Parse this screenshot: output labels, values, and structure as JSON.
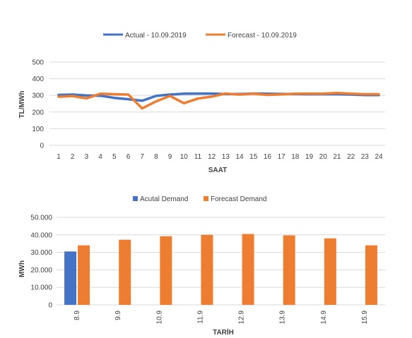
{
  "colors": {
    "actual": "#4472c4",
    "forecast": "#ed7d31",
    "grid": "#d9d9d9",
    "text": "#404040"
  },
  "chart_data": [
    {
      "type": "line",
      "title": "",
      "xlabel": "SAAT",
      "ylabel": "TL/MWh",
      "ylim": [
        0,
        500
      ],
      "yticks": [
        "0",
        "100",
        "200",
        "300",
        "400",
        "500"
      ],
      "grid": true,
      "legend_position": "top",
      "x": [
        "1",
        "2",
        "3",
        "4",
        "5",
        "6",
        "7",
        "8",
        "9",
        "10",
        "11",
        "12",
        "13",
        "14",
        "15",
        "16",
        "17",
        "18",
        "19",
        "20",
        "21",
        "22",
        "23",
        "24"
      ],
      "series": [
        {
          "name": "Actual - 10.09.2019",
          "color": "#4472c4",
          "values": [
            303,
            305,
            300,
            298,
            285,
            277,
            268,
            297,
            305,
            310,
            311,
            311,
            308,
            308,
            311,
            310,
            309,
            308,
            307,
            307,
            307,
            305,
            302,
            302
          ]
        },
        {
          "name": "Forecast - 10.09.2019",
          "color": "#ed7d31",
          "values": [
            292,
            296,
            282,
            310,
            307,
            305,
            222,
            264,
            297,
            253,
            281,
            293,
            311,
            305,
            310,
            303,
            306,
            310,
            310,
            310,
            315,
            310,
            307,
            307
          ]
        }
      ]
    },
    {
      "type": "bar",
      "title": "",
      "xlabel": "TARİH",
      "ylabel": "MWh",
      "ylim": [
        0,
        50000
      ],
      "yticks": [
        "0",
        "10.000",
        "20.000",
        "30.000",
        "40.000",
        "50.000"
      ],
      "grid": true,
      "legend_position": "top",
      "categories": [
        "8.9",
        "9.9",
        "10.9",
        "11.9",
        "12.9",
        "13.9",
        "14.9",
        "15.9"
      ],
      "series": [
        {
          "name": "Acutal Demand",
          "color": "#4472c4",
          "values": [
            30500,
            null,
            null,
            null,
            null,
            null,
            null,
            null
          ]
        },
        {
          "name": "Forecast Demand",
          "color": "#ed7d31",
          "values": [
            34000,
            37200,
            39200,
            40000,
            40500,
            39700,
            38000,
            34000
          ]
        }
      ]
    }
  ]
}
